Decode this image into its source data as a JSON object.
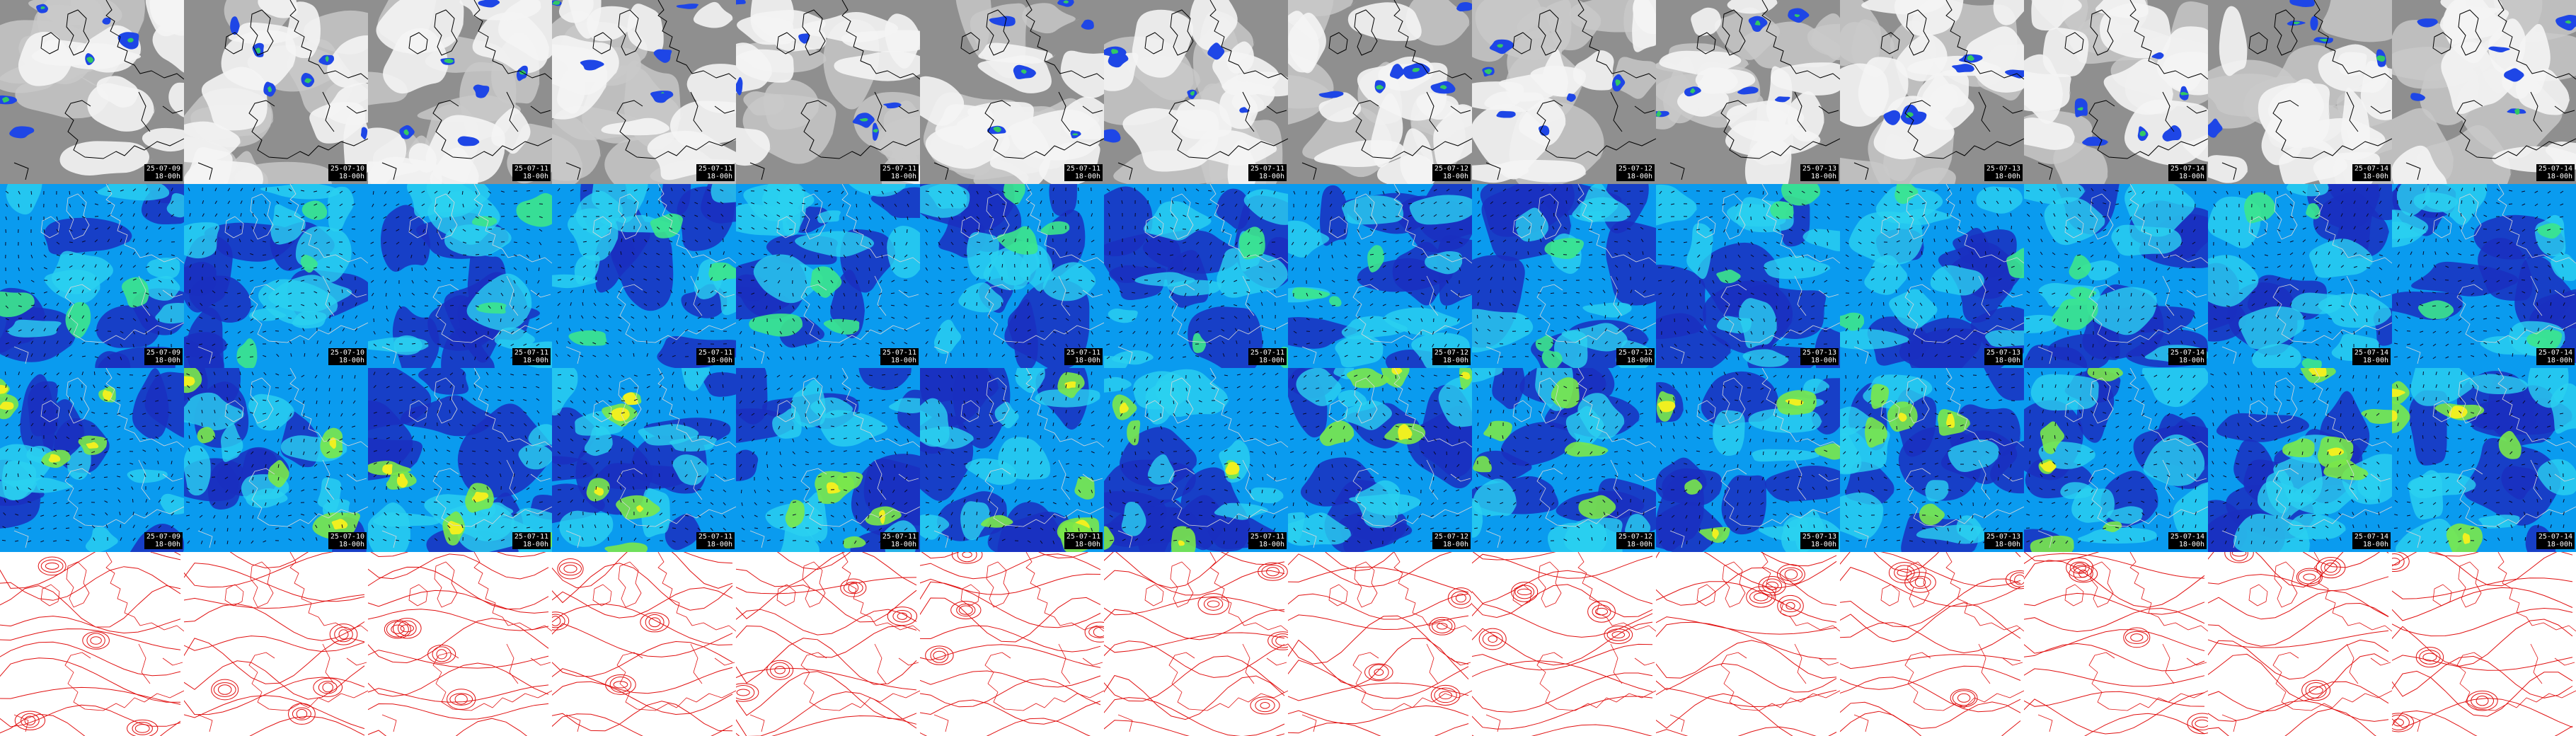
{
  "mosaic": {
    "columns": 14,
    "rows": [
      {
        "id": "cloud",
        "colors": {
          "bg": "#8f8f8f",
          "light": "#f4f4f4",
          "mid": "#c9c9c9",
          "precipA": "#1e46e6",
          "precipB": "#32c864",
          "coast": "#000000"
        },
        "stamps": [
          "25-07-09",
          "25-07-10",
          "25-07-11",
          "25-07-11",
          "25-07-11",
          "25-07-11",
          "25-07-11",
          "25-07-12",
          "25-07-12",
          "25-07-13",
          "25-07-13",
          "25-07-14",
          "25-07-14",
          "25-07-14"
        ],
        "runs": [
          "18-00h",
          "18-00h",
          "18-00h",
          "18-00h",
          "18-00h",
          "18-00h",
          "18-00h",
          "18-00h",
          "18-00h",
          "18-00h",
          "18-00h",
          "18-00h",
          "18-00h",
          "18-00h"
        ]
      },
      {
        "id": "wind-low",
        "colors": {
          "bg": "#0a9bef",
          "dark": "#1a2fbf",
          "light": "#2ad1f0",
          "hot": "#3ce68c",
          "arrow": "#0a0a28",
          "coast": "#d8d8d8"
        },
        "stamps": [
          "25-07-09",
          "25-07-10",
          "25-07-11",
          "25-07-11",
          "25-07-11",
          "25-07-11",
          "25-07-11",
          "25-07-12",
          "25-07-12",
          "25-07-13",
          "25-07-13",
          "25-07-14",
          "25-07-14",
          "25-07-14"
        ],
        "runs": [
          "18-00h",
          "18-00h",
          "18-00h",
          "18-00h",
          "18-00h",
          "18-00h",
          "18-00h",
          "18-00h",
          "18-00h",
          "18-00h",
          "18-00h",
          "18-00h",
          "18-00h",
          "18-00h"
        ]
      },
      {
        "id": "wind-upper",
        "colors": {
          "bg": "#0a9bef",
          "dark": "#1a2fbf",
          "light": "#2ad1f0",
          "hot": "#7ae84a",
          "jet": "#f0f020",
          "arrow": "#0a0a28",
          "coast": "#d8d8d8"
        },
        "stamps": [
          "25-07-09",
          "25-07-10",
          "25-07-11",
          "25-07-11",
          "25-07-11",
          "25-07-11",
          "25-07-11",
          "25-07-12",
          "25-07-12",
          "25-07-13",
          "25-07-13",
          "25-07-14",
          "25-07-14",
          "25-07-14"
        ],
        "runs": [
          "18-00h",
          "18-00h",
          "18-00h",
          "18-00h",
          "18-00h",
          "18-00h",
          "18-00h",
          "18-00h",
          "18-00h",
          "18-00h",
          "18-00h",
          "18-00h",
          "18-00h",
          "18-00h"
        ]
      },
      {
        "id": "isobars",
        "colors": {
          "bg": "#ffffff",
          "line": "#e01010"
        },
        "stamps": [],
        "runs": []
      }
    ]
  }
}
